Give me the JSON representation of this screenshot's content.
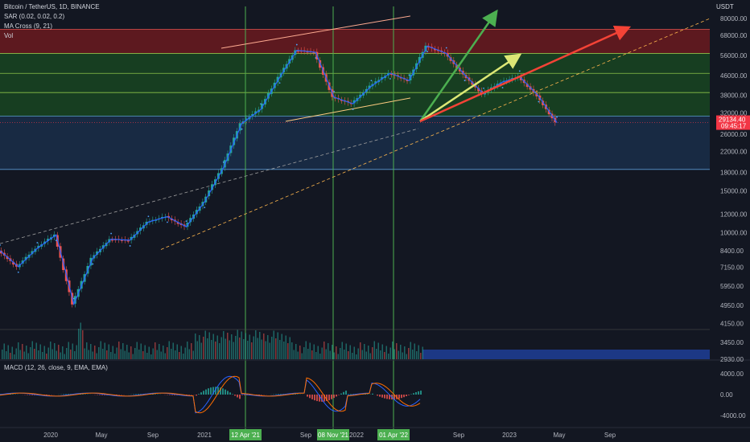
{
  "header": {
    "title": "Bitcoin / TetherUS, 1D, BINANCE",
    "indicators": [
      "SAR (0.02, 0.02, 0.2)",
      "MA Cross (9, 21)",
      "Vol"
    ]
  },
  "macd": {
    "label": "MACD (12, 26, close, 9, EMA, EMA)"
  },
  "colors": {
    "background": "#131722",
    "candle_up": "#26a69a",
    "candle_down": "#ef5350",
    "sar": "#4da3ff",
    "ma_fast": "#2962ff",
    "arrow_green": "#4caf50",
    "arrow_yellow": "#dce775",
    "arrow_red": "#f44336",
    "zone_red": "#b71c1c",
    "zone_green": "#1b5e20",
    "zone_blue": "#1e3a5f",
    "vline": "#4caf50",
    "price_flag": "#f23645"
  },
  "chart_data": {
    "type": "candlestick",
    "scale": "log",
    "ylim": [
      2930,
      90000
    ],
    "unit": "USDT",
    "y_ticks": [
      "80000.00",
      "68000.00",
      "56000.00",
      "46000.00",
      "38000.00",
      "32000.00",
      "26000.00",
      "22000.00",
      "18000.00",
      "15000.00",
      "12000.00",
      "10000.00",
      "8400.00",
      "7150.00",
      "5950.00",
      "4950.00",
      "4150.00",
      "3450.00",
      "2930.00"
    ],
    "x_ticks": [
      "2020",
      "May",
      "Sep",
      "2021",
      "Sep",
      "2022",
      "Sep",
      "2023",
      "May",
      "Sep"
    ],
    "highlighted_dates": [
      "12 Apr '21",
      "08 Nov '21",
      "01 Apr '22"
    ],
    "current_price": "29134.40",
    "countdown": "09:45:17",
    "price_series": [
      {
        "date": "2019-11",
        "price": 8400
      },
      {
        "date": "2019-12",
        "price": 7200
      },
      {
        "date": "2020-01",
        "price": 8600
      },
      {
        "date": "2020-02",
        "price": 9800
      },
      {
        "date": "2020-03",
        "price": 5000
      },
      {
        "date": "2020-04",
        "price": 7800
      },
      {
        "date": "2020-05",
        "price": 9400
      },
      {
        "date": "2020-06",
        "price": 9300
      },
      {
        "date": "2020-07",
        "price": 11100
      },
      {
        "date": "2020-08",
        "price": 11700
      },
      {
        "date": "2020-09",
        "price": 10600
      },
      {
        "date": "2020-10",
        "price": 13500
      },
      {
        "date": "2020-11",
        "price": 18800
      },
      {
        "date": "2020-12",
        "price": 28900
      },
      {
        "date": "2021-01",
        "price": 33100
      },
      {
        "date": "2021-02",
        "price": 45200
      },
      {
        "date": "2021-03",
        "price": 58800
      },
      {
        "date": "2021-04",
        "price": 57700
      },
      {
        "date": "2021-05",
        "price": 37300
      },
      {
        "date": "2021-06",
        "price": 35000
      },
      {
        "date": "2021-07",
        "price": 41500
      },
      {
        "date": "2021-08",
        "price": 47100
      },
      {
        "date": "2021-09",
        "price": 43800
      },
      {
        "date": "2021-10",
        "price": 61300
      },
      {
        "date": "2021-11",
        "price": 57000
      },
      {
        "date": "2021-12",
        "price": 46300
      },
      {
        "date": "2022-01",
        "price": 38500
      },
      {
        "date": "2022-02",
        "price": 43200
      },
      {
        "date": "2022-03",
        "price": 45500
      },
      {
        "date": "2022-04",
        "price": 37700
      },
      {
        "date": "2022-05",
        "price": 29134
      }
    ],
    "zones": [
      {
        "name": "resistance-top",
        "from": 57000,
        "to": 72000,
        "color": "red"
      },
      {
        "name": "zone-2",
        "from": 47000,
        "to": 57000,
        "color": "green"
      },
      {
        "name": "zone-3",
        "from": 39000,
        "to": 47000,
        "color": "green"
      },
      {
        "name": "zone-4",
        "from": 31000,
        "to": 39000,
        "color": "green"
      },
      {
        "name": "support",
        "from": 18500,
        "to": 31000,
        "color": "blue"
      }
    ],
    "macd_ticks": [
      "4000.00",
      "0.00",
      "-4000.00"
    ],
    "macd_ylim": [
      -6000,
      6000
    ]
  }
}
